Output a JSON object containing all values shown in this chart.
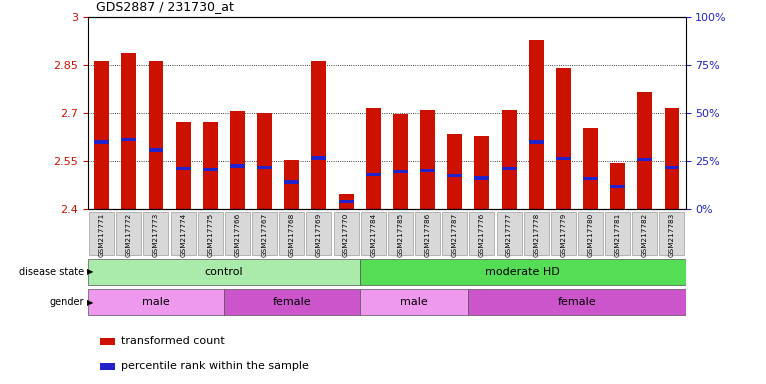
{
  "title": "GDS2887 / 231730_at",
  "samples": [
    "GSM217771",
    "GSM217772",
    "GSM217773",
    "GSM217774",
    "GSM217775",
    "GSM217766",
    "GSM217767",
    "GSM217768",
    "GSM217769",
    "GSM217770",
    "GSM217784",
    "GSM217785",
    "GSM217786",
    "GSM217787",
    "GSM217776",
    "GSM217777",
    "GSM217778",
    "GSM217779",
    "GSM217780",
    "GSM217781",
    "GSM217782",
    "GSM217783"
  ],
  "bar_tops": [
    2.863,
    2.887,
    2.862,
    2.672,
    2.672,
    2.707,
    2.7,
    2.553,
    2.862,
    2.448,
    2.716,
    2.698,
    2.71,
    2.635,
    2.63,
    2.71,
    2.93,
    2.84,
    2.655,
    2.545,
    2.765,
    2.715
  ],
  "blue_positions": [
    2.61,
    2.617,
    2.585,
    2.527,
    2.525,
    2.535,
    2.53,
    2.485,
    2.56,
    2.425,
    2.508,
    2.518,
    2.52,
    2.505,
    2.498,
    2.527,
    2.61,
    2.558,
    2.495,
    2.47,
    2.555,
    2.53
  ],
  "y_min": 2.4,
  "y_max": 3.0,
  "y_ticks": [
    2.4,
    2.55,
    2.7,
    2.85,
    3.0
  ],
  "y_tick_labels": [
    "2.4",
    "2.55",
    "2.7",
    "2.85",
    "3"
  ],
  "right_y_ticks": [
    0,
    25,
    50,
    75,
    100
  ],
  "right_y_labels": [
    "0%",
    "25%",
    "50%",
    "75%",
    "100%"
  ],
  "bar_color": "#cc1100",
  "blue_color": "#2222cc",
  "bar_width": 0.55,
  "disease_state_groups": [
    {
      "label": "control",
      "start": 0,
      "end": 10,
      "color": "#aaeaaa"
    },
    {
      "label": "moderate HD",
      "start": 10,
      "end": 22,
      "color": "#55dd55"
    }
  ],
  "gender_groups": [
    {
      "label": "male",
      "start": 0,
      "end": 5,
      "color": "#ee99ee"
    },
    {
      "label": "female",
      "start": 5,
      "end": 10,
      "color": "#cc55cc"
    },
    {
      "label": "male",
      "start": 10,
      "end": 14,
      "color": "#ee99ee"
    },
    {
      "label": "female",
      "start": 14,
      "end": 22,
      "color": "#cc55cc"
    }
  ],
  "legend_items": [
    {
      "label": "transformed count",
      "color": "#cc1100"
    },
    {
      "label": "percentile rank within the sample",
      "color": "#2222cc"
    }
  ],
  "grid_color": "#000000",
  "bg_color": "#ffffff",
  "tick_label_color_left": "#cc1100",
  "tick_label_color_right": "#2222cc",
  "label_color_left": [
    "disease state ►",
    "gender ►"
  ],
  "box_facecolor": "#d8d8d8",
  "left_label_disease": "disease state",
  "left_label_gender": "gender"
}
